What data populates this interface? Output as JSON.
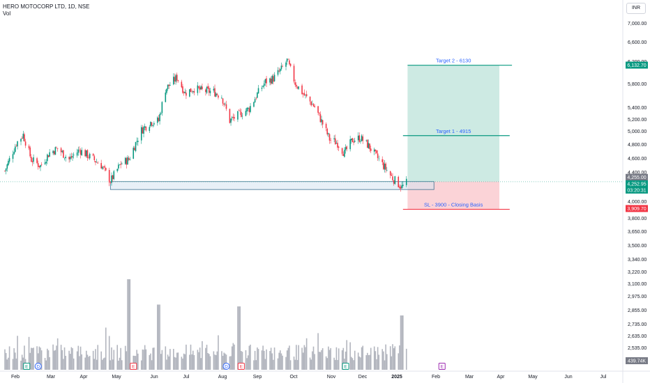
{
  "header": {
    "symbol": "HERO MOTOCORP LTD, 1D, NSE",
    "volume_label": "Vol"
  },
  "currency_button": "INR",
  "chart_data": {
    "type": "candlestick",
    "title": "HERO MOTOCORP LTD, 1D, NSE",
    "y_scale": "log",
    "ylim": [
      3540,
      7050
    ],
    "price_ticks": [
      "7,000.00",
      "6,600.00",
      "6,200.00",
      "5,800.00",
      "5,400.00",
      "5,200.00",
      "5,000.00",
      "4,800.00",
      "4,600.00",
      "4,400.00",
      "4,000.00",
      "3,800.00",
      "3,650.00",
      "3,500.00",
      "3,340.00",
      "3,220.00",
      "3,100.00",
      "2,975.00",
      "2,855.00",
      "2,735.00",
      "2,635.00",
      "2,535.00"
    ],
    "x_ticks": [
      "Feb",
      "Mar",
      "Apr",
      "May",
      "Jun",
      "Jul",
      "Aug",
      "Sep",
      "Oct",
      "Nov",
      "Dec",
      "2025",
      "Feb",
      "Mar",
      "Apr",
      "May",
      "Jun",
      "Jul"
    ],
    "price_path": [
      [
        "2024-01-22",
        4400
      ],
      [
        "2024-02-01",
        4800
      ],
      [
        "2024-02-07",
        4930
      ],
      [
        "2024-02-14",
        4560
      ],
      [
        "2024-02-22",
        4470
      ],
      [
        "2024-03-01",
        4660
      ],
      [
        "2024-03-08",
        4720
      ],
      [
        "2024-03-18",
        4560
      ],
      [
        "2024-03-27",
        4700
      ],
      [
        "2024-04-05",
        4600
      ],
      [
        "2024-04-15",
        4480
      ],
      [
        "2024-04-23",
        4260
      ],
      [
        "2024-05-02",
        4500
      ],
      [
        "2024-05-09",
        4560
      ],
      [
        "2024-05-20",
        5000
      ],
      [
        "2024-05-28",
        5130
      ],
      [
        "2024-06-04",
        5150
      ],
      [
        "2024-06-10",
        5690
      ],
      [
        "2024-06-20",
        5900
      ],
      [
        "2024-06-27",
        5620
      ],
      [
        "2024-07-05",
        5700
      ],
      [
        "2024-07-12",
        5660
      ],
      [
        "2024-07-22",
        5640
      ],
      [
        "2024-07-29",
        5560
      ],
      [
        "2024-08-05",
        5150
      ],
      [
        "2024-08-13",
        5250
      ],
      [
        "2024-08-22",
        5350
      ],
      [
        "2024-08-29",
        5600
      ],
      [
        "2024-09-05",
        5820
      ],
      [
        "2024-09-12",
        5880
      ],
      [
        "2024-09-19",
        6050
      ],
      [
        "2024-09-24",
        6220
      ],
      [
        "2024-10-01",
        5800
      ],
      [
        "2024-10-09",
        5580
      ],
      [
        "2024-10-18",
        5380
      ],
      [
        "2024-10-25",
        5100
      ],
      [
        "2024-10-31",
        4860
      ],
      [
        "2024-11-07",
        4800
      ],
      [
        "2024-11-13",
        4650
      ],
      [
        "2024-11-20",
        4850
      ],
      [
        "2024-11-27",
        4880
      ],
      [
        "2024-12-04",
        4760
      ],
      [
        "2024-12-11",
        4600
      ],
      [
        "2024-12-18",
        4450
      ],
      [
        "2024-12-25",
        4300
      ],
      [
        "2025-01-02",
        4180
      ],
      [
        "2025-01-07",
        4252.95
      ]
    ],
    "volume_spikes": [
      [
        "2024-05-09",
        1.0
      ],
      [
        "2024-06-04",
        0.72
      ],
      [
        "2024-08-13",
        0.7
      ],
      [
        "2025-01-02",
        0.6
      ]
    ],
    "last_volume_label": "439.74K",
    "earnings_markers": [
      [
        "2024-02-10",
        "E"
      ],
      [
        "2024-05-13",
        "E"
      ],
      [
        "2024-08-15",
        "E"
      ],
      [
        "2024-11-14",
        "E"
      ],
      [
        "2025-02-06",
        "E"
      ]
    ],
    "dividend_markers": [
      [
        "2024-02-20",
        "D"
      ],
      [
        "2024-08-02",
        "D"
      ]
    ],
    "support_zone": {
      "from": "2024-04-23",
      "to": "2025-01-30",
      "low": 4150,
      "high": 4255
    },
    "position": {
      "entry": 4255,
      "target": 6130,
      "stop": 3900,
      "from": "2025-01-07",
      "to": "2025-03-28",
      "entry_label": "4,255.00"
    },
    "target_lines": [
      {
        "label": "Target 2 - 6130",
        "value": 6130
      },
      {
        "label": "Target 1 - 4915",
        "value": 4915
      },
      {
        "label": "SL - 3900 - Closing Basis",
        "value": 3900
      }
    ],
    "price_badges": [
      {
        "text": "6,132.70",
        "value": 6132.7,
        "color": "#089981"
      },
      {
        "text": "4,255.00",
        "value": 4255,
        "color": "#787b86"
      },
      {
        "text": "4,252.95",
        "value": 4252.95,
        "color": "#089981"
      },
      {
        "text": "03:20:31",
        "value": 4180,
        "color": "#089981"
      },
      {
        "text": "3,909.70",
        "value": 3909.7,
        "color": "#f23645"
      }
    ],
    "colors": {
      "up": "#089981",
      "down": "#f23645",
      "target_zone": "#cdeae3",
      "stop_zone": "#fbd3d7",
      "target_text": "#2962ff"
    }
  }
}
